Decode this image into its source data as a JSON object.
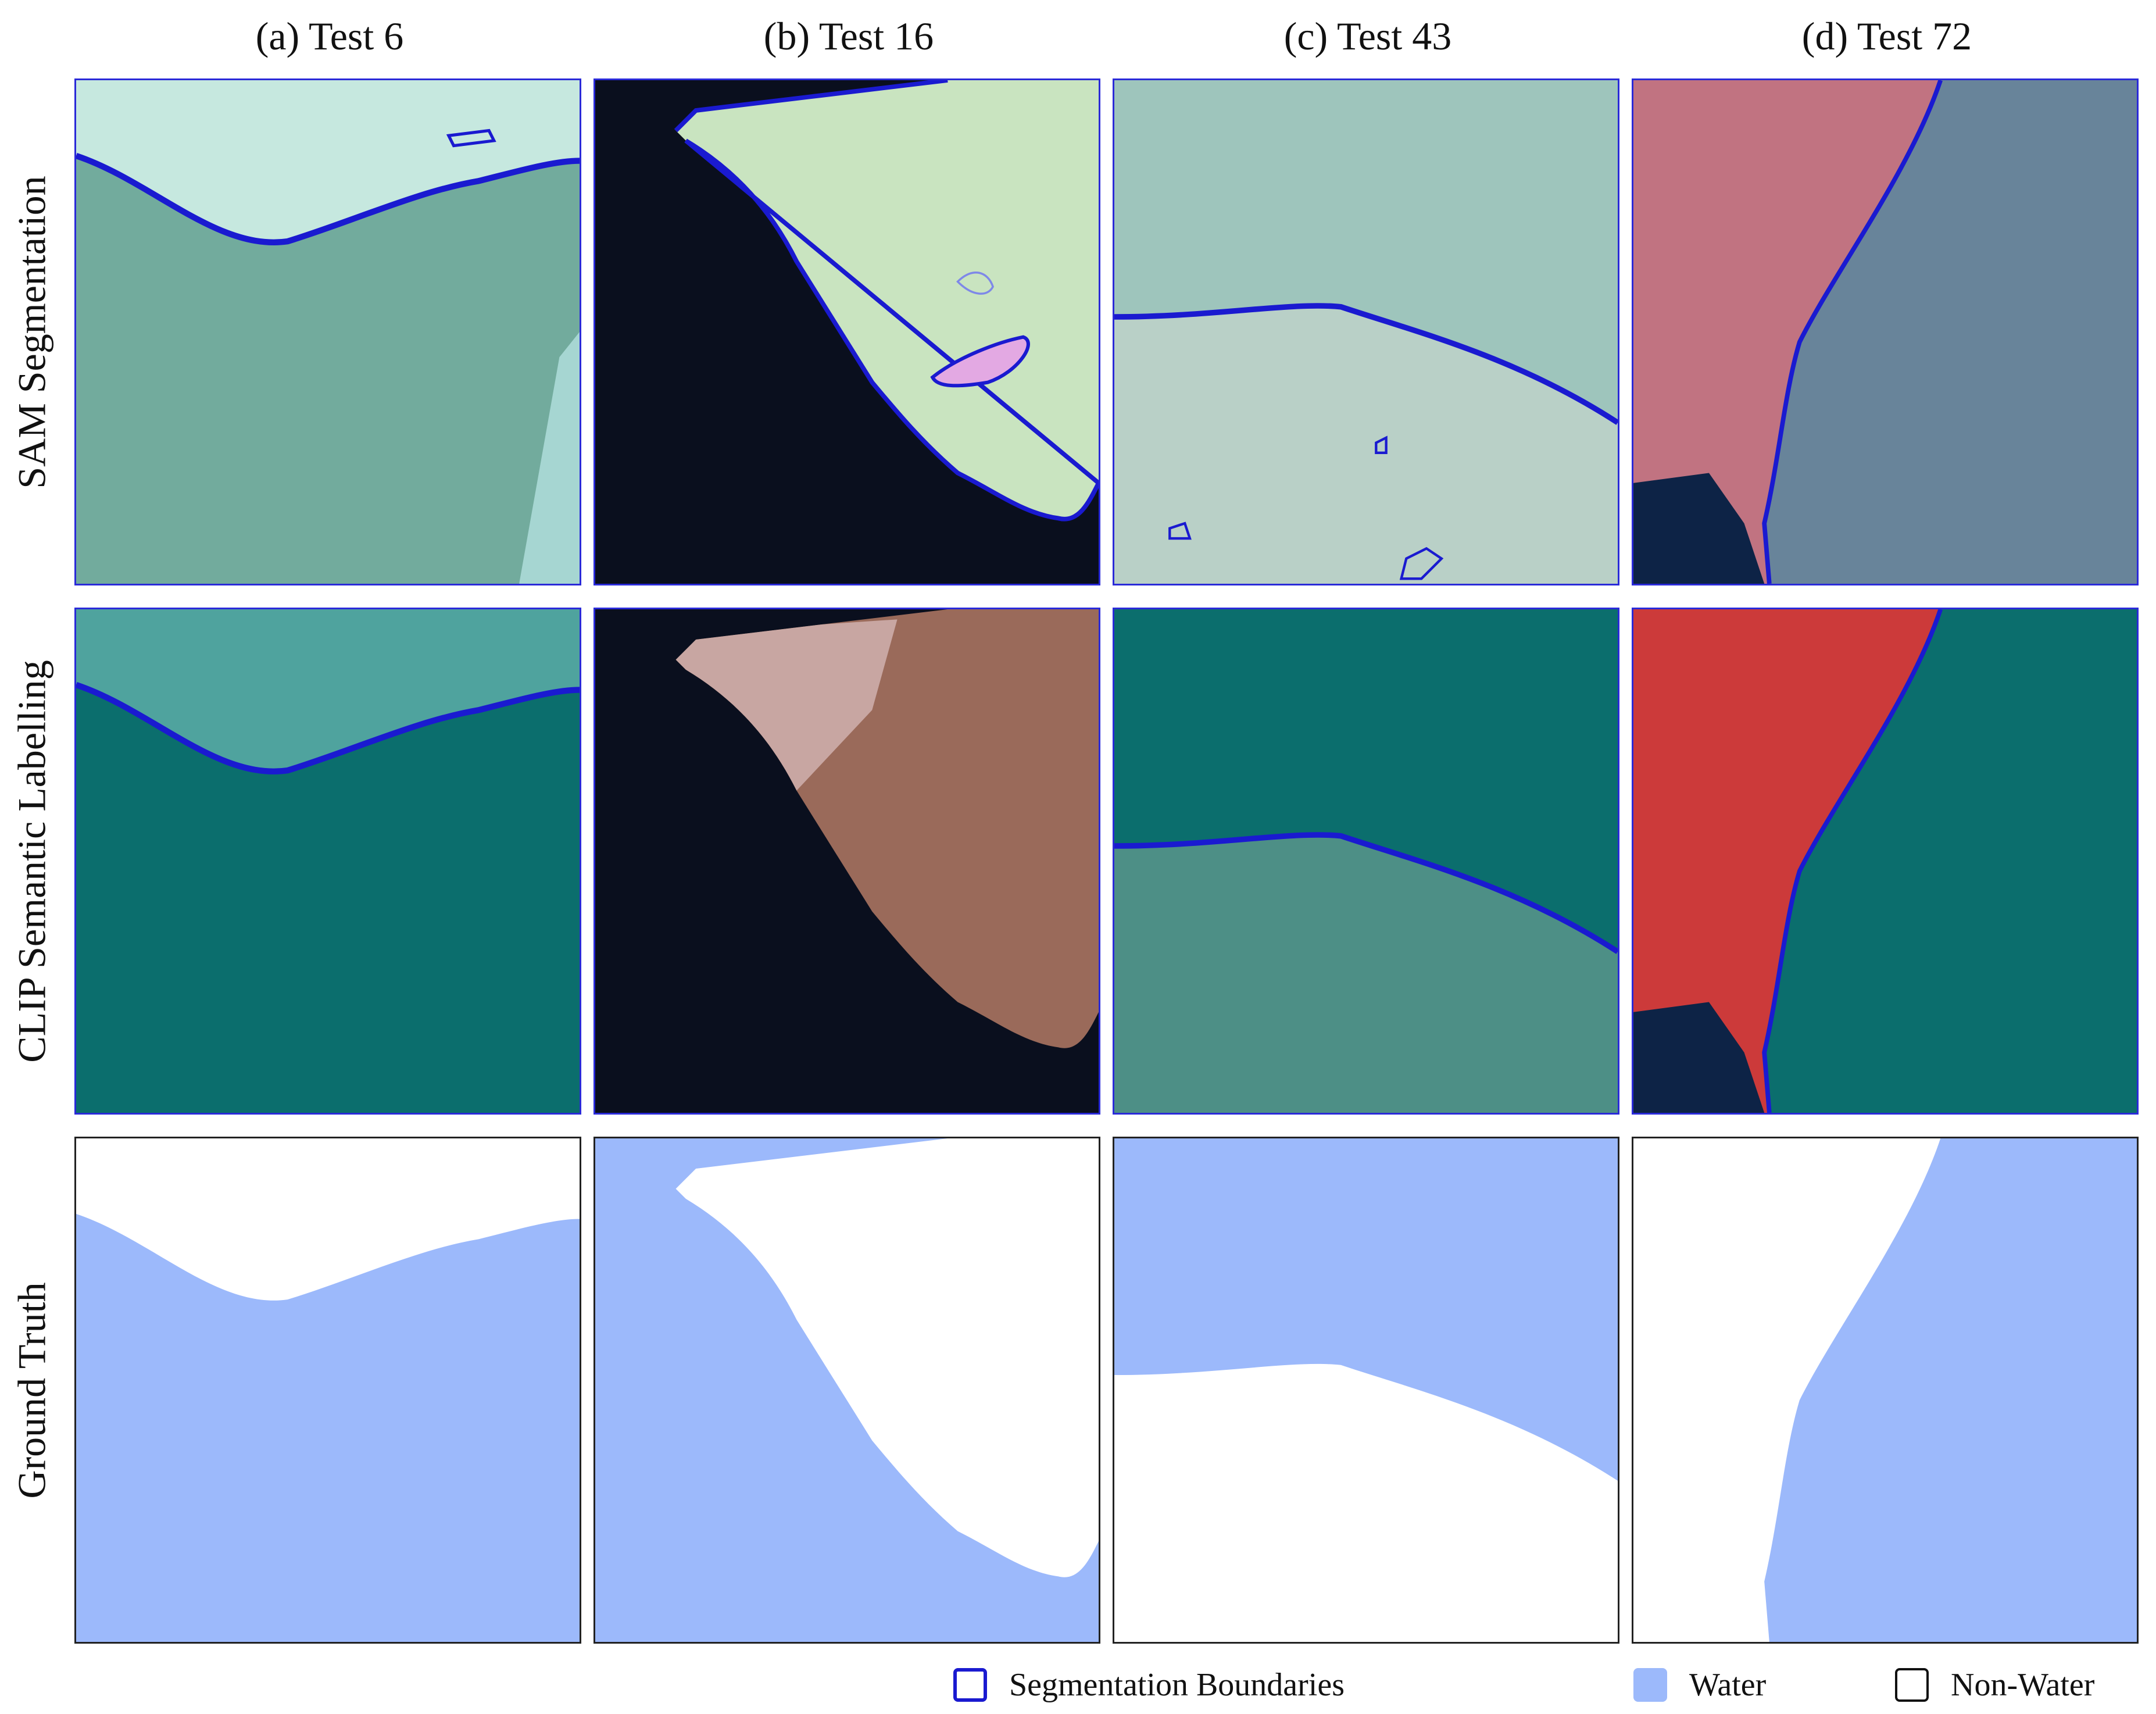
{
  "columns": [
    {
      "label": "(a) Test 6"
    },
    {
      "label": "(b) Test 16"
    },
    {
      "label": "(c) Test 43"
    },
    {
      "label": "(d) Test 72"
    }
  ],
  "rows": [
    {
      "label": "SAM Segmentation"
    },
    {
      "label": "CLIP Semantic Labelling"
    },
    {
      "label": "Ground Truth"
    }
  ],
  "legend": {
    "boundary": "Segmentation Boundaries",
    "water": "Water",
    "nonwater": "Non-Water"
  },
  "colors": {
    "boundary": "#1a1ad0",
    "water": "#9cb9fb",
    "nonwater": "#ffffff"
  }
}
